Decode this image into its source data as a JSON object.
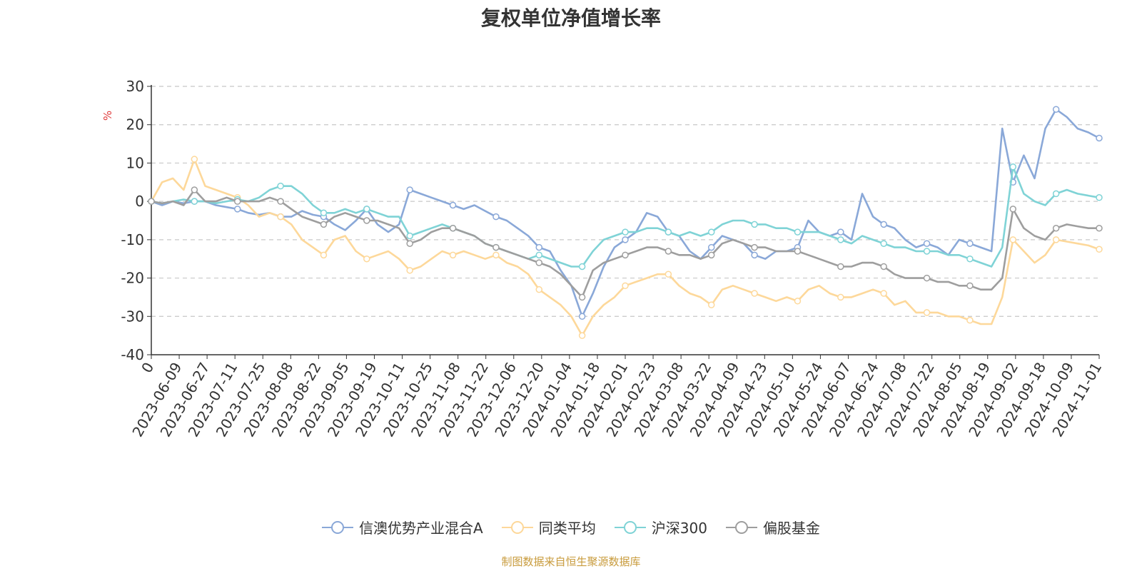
{
  "chart_data": {
    "type": "line",
    "title": "复权单位净值增长率",
    "ylabel": "%",
    "ylim": [
      -40,
      30
    ],
    "yticks": [
      30,
      20,
      10,
      0,
      -10,
      -20,
      -30,
      -40
    ],
    "x_tick_labels": [
      "0",
      "2023-06-09",
      "2023-06-27",
      "2023-07-11",
      "2023-07-25",
      "2023-08-08",
      "2023-08-22",
      "2023-09-05",
      "2023-09-19",
      "2023-10-11",
      "2023-10-25",
      "2023-11-08",
      "2023-11-22",
      "2023-12-06",
      "2023-12-20",
      "2024-01-04",
      "2024-01-18",
      "2024-02-01",
      "2024-02-23",
      "2024-03-08",
      "2024-03-22",
      "2024-04-09",
      "2024-04-23",
      "2024-05-10",
      "2024-05-24",
      "2024-06-07",
      "2024-06-24",
      "2024-07-08",
      "2024-07-22",
      "2024-08-05",
      "2024-08-19",
      "2024-09-02",
      "2024-09-18",
      "2024-10-09",
      "2024-11-01"
    ],
    "grid": true,
    "legend_position": "bottom",
    "series": [
      {
        "name": "信澳优势产业混合A",
        "color": "#8aa8d8",
        "values": [
          0,
          -1,
          0,
          -0.5,
          0,
          0,
          -1,
          -1.5,
          -2,
          -3,
          -3.5,
          -3,
          -4,
          -4,
          -2.5,
          -3.5,
          -4,
          -6,
          -7.5,
          -5,
          -2,
          -6,
          -8,
          -6,
          3,
          2,
          1,
          0,
          -1,
          -2,
          -1,
          -2.5,
          -4,
          -5,
          -7,
          -9,
          -12,
          -13,
          -18,
          -22,
          -30,
          -24,
          -17,
          -12,
          -10,
          -8,
          -3,
          -4,
          -8,
          -9,
          -13,
          -15,
          -12,
          -9,
          -10,
          -11,
          -14,
          -15,
          -13,
          -13,
          -12,
          -5,
          -8,
          -9,
          -8,
          -10,
          2,
          -4,
          -6,
          -7,
          -10,
          -12,
          -11,
          -12,
          -14,
          -10,
          -11,
          -12,
          -13,
          19,
          5,
          12,
          6,
          19,
          24,
          22,
          19,
          18,
          16.5
        ]
      },
      {
        "name": "同类平均",
        "color": "#fdd89a",
        "values": [
          0,
          5,
          6,
          3,
          11,
          4,
          3,
          2,
          1,
          -1,
          -4,
          -3,
          -4,
          -6,
          -10,
          -12,
          -14,
          -10,
          -9,
          -13,
          -15,
          -14,
          -13,
          -15,
          -18,
          -17,
          -15,
          -13,
          -14,
          -13,
          -14,
          -15,
          -14,
          -16,
          -17,
          -19,
          -23,
          -25,
          -27,
          -30,
          -35,
          -30,
          -27,
          -25,
          -22,
          -21,
          -20,
          -19,
          -19,
          -22,
          -24,
          -25,
          -27,
          -23,
          -22,
          -23,
          -24,
          -25,
          -26,
          -25,
          -26,
          -23,
          -22,
          -24,
          -25,
          -25,
          -24,
          -23,
          -24,
          -27,
          -26,
          -29,
          -29,
          -29,
          -30,
          -30,
          -31,
          -32,
          -32,
          -25,
          -10,
          -13,
          -16,
          -14,
          -10,
          -10.5,
          -11,
          -11.5,
          -12.5
        ]
      },
      {
        "name": "沪深300",
        "color": "#7fd3d6",
        "values": [
          0,
          -0.5,
          0,
          0.5,
          0,
          0,
          -0.5,
          0,
          0.5,
          0,
          1,
          3,
          4,
          4,
          2,
          -1,
          -3,
          -3,
          -2,
          -3,
          -2,
          -3,
          -4,
          -4,
          -9,
          -8,
          -7,
          -6,
          -7,
          -8,
          -9,
          -11,
          -12,
          -13,
          -14,
          -15,
          -14,
          -15,
          -16,
          -17,
          -17,
          -13,
          -10,
          -9,
          -8,
          -8,
          -7,
          -7,
          -8,
          -9,
          -8,
          -9,
          -8,
          -6,
          -5,
          -5,
          -6,
          -6,
          -7,
          -7,
          -8,
          -8,
          -8,
          -9,
          -10,
          -11,
          -9,
          -10,
          -11,
          -12,
          -12,
          -13,
          -13,
          -13,
          -14,
          -14,
          -15,
          -16,
          -17,
          -12,
          9,
          2,
          0,
          -1,
          2,
          3,
          2,
          1.5,
          1
        ]
      },
      {
        "name": "偏股基金",
        "color": "#9e9e9e",
        "values": [
          0,
          -0.5,
          0,
          -1,
          3,
          0,
          0,
          1,
          0,
          0,
          0,
          1,
          0,
          -2,
          -4,
          -5,
          -6,
          -4,
          -3,
          -4,
          -5,
          -5,
          -6,
          -7,
          -11,
          -10,
          -8,
          -7,
          -7,
          -8,
          -9,
          -11,
          -12,
          -13,
          -14,
          -15,
          -16,
          -17,
          -19,
          -22,
          -25,
          -18,
          -16,
          -15,
          -14,
          -13,
          -12,
          -12,
          -13,
          -14,
          -14,
          -15,
          -14,
          -11,
          -10,
          -11,
          -12,
          -12,
          -13,
          -13,
          -13,
          -14,
          -15,
          -16,
          -17,
          -17,
          -16,
          -16,
          -17,
          -19,
          -20,
          -20,
          -20,
          -21,
          -21,
          -22,
          -22,
          -23,
          -23,
          -20,
          -2,
          -7,
          -9,
          -10,
          -7,
          -6,
          -6.5,
          -7,
          -7
        ]
      }
    ]
  },
  "source": "制图数据来自恒生聚源数据库"
}
